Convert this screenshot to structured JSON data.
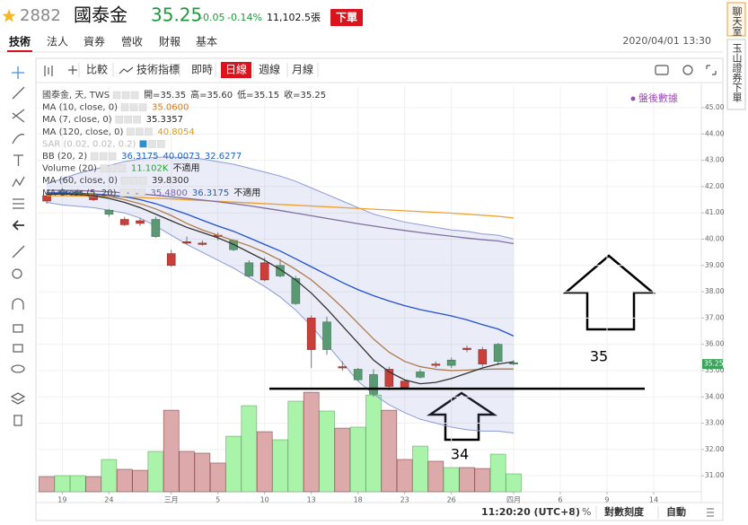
{
  "header": {
    "symbol": "2882",
    "name": "國泰金",
    "price": "35.25",
    "change": "-0.05",
    "change_pct": "-0.14%",
    "volume": "11,102.5張",
    "order_button": "下單"
  },
  "tabs": [
    "技術",
    "法人",
    "資券",
    "營收",
    "財報",
    "基本"
  ],
  "datetime": "2020/04/01 13:30",
  "toolbar": {
    "compare": "比較",
    "indicators": "技術指標",
    "periods": [
      "即時",
      "日線",
      "週線",
      "月線"
    ]
  },
  "side_buttons": [
    "聊天室",
    "玉山證券下單"
  ],
  "chart_data": {
    "type": "candlestick",
    "badge": "盤後數據",
    "legend": [
      {
        "label": "國泰金, 天, TWS",
        "values": [
          "開=35.35",
          "高=35.60",
          "低=35.15",
          "收=35.25"
        ],
        "colors": [
          "#333333",
          "#333333",
          "#333333",
          "#333333"
        ]
      },
      {
        "label": "MA (10, close, 0)",
        "values": [
          "35.0600"
        ],
        "colors": [
          "#d0781e"
        ]
      },
      {
        "label": "MA (7, close, 0)",
        "values": [
          "35.3357"
        ],
        "colors": [
          "#222222"
        ]
      },
      {
        "label": "MA (120, close, 0)",
        "values": [
          "40.8054"
        ],
        "colors": [
          "#e09a1a"
        ]
      },
      {
        "label": "SAR (0.02, 0.02, 0.2)",
        "values": [],
        "colors": []
      },
      {
        "label": "BB (20, 2)",
        "values": [
          "36.3175",
          "40.0073",
          "32.6277"
        ],
        "colors": [
          "#1f5fbf",
          "#1f5fbf",
          "#1f5fbf"
        ]
      },
      {
        "label": "Volume (20)",
        "values": [
          "11.102K",
          "不適用"
        ],
        "colors": [
          "#1fa82a",
          "#222222"
        ]
      },
      {
        "label": "MA (60, close, 0)",
        "values": [
          "39.8300"
        ],
        "colors": [
          "#333333"
        ]
      },
      {
        "label": "MA Cross (5, 20)",
        "values": [
          "35.4800",
          "36.3175",
          "不適用"
        ],
        "colors": [
          "#7a5fbf",
          "#1f5fbf",
          "#222222"
        ]
      }
    ],
    "xlim": [
      -0.58,
      42.06
    ],
    "xticks": [
      {
        "value": 1,
        "label": "19"
      },
      {
        "value": 4,
        "label": "24"
      },
      {
        "value": 8,
        "label": "三月"
      },
      {
        "value": 11,
        "label": "5"
      },
      {
        "value": 14,
        "label": "10"
      },
      {
        "value": 17,
        "label": "13"
      },
      {
        "value": 20,
        "label": "18"
      },
      {
        "value": 23,
        "label": "23"
      },
      {
        "value": 26,
        "label": "26"
      },
      {
        "value": 30,
        "label": "四月"
      },
      {
        "value": 33,
        "label": "6"
      },
      {
        "value": 36,
        "label": "9"
      },
      {
        "value": 39,
        "label": "14"
      }
    ],
    "ylim": [
      30.39,
      45.82
    ],
    "yticks": [
      {
        "value": 31,
        "label": "31.00"
      },
      {
        "value": 32,
        "label": "32.00"
      },
      {
        "value": 33,
        "label": "33.00"
      },
      {
        "value": 34,
        "label": "34.00"
      },
      {
        "value": 35,
        "label": "35.00"
      },
      {
        "value": 36,
        "label": "36.00"
      },
      {
        "value": 37,
        "label": "37.00"
      },
      {
        "value": 38,
        "label": "38.00"
      },
      {
        "value": 39,
        "label": "39.00"
      },
      {
        "value": 40,
        "label": "40.00"
      },
      {
        "value": 41,
        "label": "41.00"
      },
      {
        "value": 42,
        "label": "42.00"
      },
      {
        "value": 43,
        "label": "43.00"
      },
      {
        "value": 44,
        "label": "44.00"
      },
      {
        "value": 45,
        "label": "45.00"
      }
    ],
    "last_label": {
      "value": 35.25,
      "label": "35.25"
    },
    "grid": true,
    "up_color": "#c9403a",
    "down_color": "#5a9a72",
    "ohlc": [
      [
        41.45,
        41.7,
        41.35,
        41.65
      ],
      [
        41.85,
        41.95,
        41.7,
        41.75
      ],
      [
        41.8,
        41.9,
        41.65,
        41.68
      ],
      [
        41.5,
        41.75,
        41.45,
        41.68
      ],
      [
        41.1,
        41.15,
        40.85,
        40.95
      ],
      [
        40.55,
        40.85,
        40.5,
        40.75
      ],
      [
        40.6,
        40.8,
        40.5,
        40.7
      ],
      [
        40.75,
        40.85,
        40.05,
        40.1
      ],
      [
        39.0,
        39.6,
        38.95,
        39.45
      ],
      [
        39.85,
        40.1,
        39.8,
        39.9
      ],
      [
        39.8,
        39.95,
        39.75,
        39.85
      ],
      [
        40.1,
        40.25,
        39.95,
        40.15
      ],
      [
        39.95,
        40.0,
        39.55,
        39.6
      ],
      [
        39.1,
        39.2,
        38.55,
        38.6
      ],
      [
        38.45,
        39.3,
        38.4,
        39.1
      ],
      [
        39.0,
        39.25,
        38.55,
        38.6
      ],
      [
        38.5,
        38.6,
        37.5,
        37.55
      ],
      [
        35.8,
        37.1,
        35.1,
        37.0
      ],
      [
        36.85,
        37.05,
        35.6,
        35.8
      ],
      [
        35.1,
        35.35,
        35.0,
        35.15
      ],
      [
        35.05,
        35.1,
        34.6,
        34.65
      ],
      [
        34.85,
        35.05,
        34.0,
        34.1
      ],
      [
        34.4,
        35.15,
        34.25,
        35.05
      ],
      [
        34.35,
        34.65,
        34.3,
        34.6
      ],
      [
        34.95,
        35.05,
        34.7,
        34.75
      ],
      [
        35.2,
        35.35,
        35.1,
        35.25
      ],
      [
        35.4,
        35.5,
        35.1,
        35.2
      ],
      [
        35.8,
        35.95,
        35.7,
        35.85
      ],
      [
        35.25,
        35.9,
        35.15,
        35.8
      ],
      [
        36.0,
        36.05,
        35.2,
        35.35
      ],
      [
        35.3,
        35.4,
        35.2,
        35.25
      ]
    ],
    "volume": [
      9.4,
      10.0,
      10.0,
      9.4,
      20.0,
      13.9,
      13.3,
      25.0,
      50.5,
      25.0,
      23.9,
      17.8,
      34.4,
      53.3,
      37.2,
      32.2,
      56.1,
      61.6,
      50.0,
      39.4,
      40.0,
      59.9,
      50.5,
      20.0,
      28.3,
      18.9,
      15.0,
      15.0,
      14.4,
      23.3,
      11.102
    ],
    "vlim": [
      0,
      120
    ],
    "volume_up_color": "#dcaaaa",
    "volume_down_color": "#aaf3aa",
    "band": {
      "fill": "rgba(140,150,215,0.18)",
      "color": "#8c9ad6",
      "upper": [
        42.1,
        42.3,
        42.5,
        42.65,
        42.8,
        42.95,
        43.05,
        43.12,
        43.12,
        43.1,
        43.05,
        42.95,
        42.85,
        42.7,
        42.55,
        42.4,
        42.2,
        41.95,
        41.7,
        41.45,
        41.2,
        40.95,
        40.8,
        40.65,
        40.55,
        40.45,
        40.35,
        40.3,
        40.2,
        40.15,
        40.0073
      ],
      "lower": [
        41.4,
        41.3,
        41.25,
        41.2,
        41.1,
        41.0,
        40.8,
        40.5,
        40.15,
        39.8,
        39.5,
        39.2,
        38.9,
        38.55,
        38.2,
        37.8,
        37.3,
        36.7,
        36.0,
        35.3,
        34.6,
        34.1,
        33.7,
        33.4,
        33.15,
        33.0,
        32.85,
        32.75,
        32.7,
        32.7,
        32.6277
      ]
    },
    "lines": [
      {
        "color": "#f0a030",
        "values": [
          41.65,
          41.65,
          41.64,
          41.63,
          41.62,
          41.6,
          41.58,
          41.56,
          41.53,
          41.5,
          41.47,
          41.44,
          41.41,
          41.38,
          41.35,
          41.32,
          41.29,
          41.26,
          41.23,
          41.2,
          41.17,
          41.14,
          41.11,
          41.08,
          41.05,
          41.02,
          40.99,
          40.95,
          40.91,
          40.87,
          40.8054
        ]
      },
      {
        "color": "#8070a0",
        "values": [
          41.86,
          41.86,
          41.85,
          41.83,
          41.8,
          41.76,
          41.72,
          41.67,
          41.61,
          41.55,
          41.49,
          41.42,
          41.35,
          41.27,
          41.18,
          41.09,
          40.99,
          40.89,
          40.79,
          40.69,
          40.59,
          40.5,
          40.41,
          40.33,
          40.25,
          40.18,
          40.11,
          40.04,
          39.98,
          39.93,
          39.83
        ]
      },
      {
        "color": "#2050d0",
        "values": [
          41.76,
          41.76,
          41.75,
          41.72,
          41.68,
          41.62,
          41.5,
          41.35,
          41.15,
          40.95,
          40.72,
          40.5,
          40.3,
          40.05,
          39.8,
          39.55,
          39.25,
          38.95,
          38.65,
          38.35,
          38.08,
          37.85,
          37.65,
          37.47,
          37.32,
          37.2,
          37.08,
          36.93,
          36.75,
          36.58,
          36.3175
        ]
      },
      {
        "color": "#b07a4a",
        "values": [
          41.72,
          41.72,
          41.72,
          41.7,
          41.62,
          41.5,
          41.35,
          41.15,
          40.9,
          40.6,
          40.35,
          40.15,
          39.95,
          39.75,
          39.5,
          39.2,
          38.85,
          38.45,
          37.95,
          37.4,
          36.8,
          36.2,
          35.7,
          35.35,
          35.15,
          35.05,
          35.0,
          35.02,
          35.05,
          35.06,
          35.06
        ]
      },
      {
        "color": "#333333",
        "values": [
          41.7,
          41.72,
          41.7,
          41.65,
          41.55,
          41.4,
          41.2,
          40.95,
          40.7,
          40.45,
          40.25,
          40.05,
          39.8,
          39.5,
          39.2,
          38.85,
          38.45,
          37.95,
          37.35,
          36.7,
          36.05,
          35.4,
          34.95,
          34.65,
          34.5,
          34.55,
          34.7,
          34.9,
          35.1,
          35.25,
          35.3357
        ]
      }
    ],
    "hline": 34.31,
    "annotations": [
      "35",
      "34"
    ]
  },
  "footer": {
    "time": "11:20:20 (UTC+8)",
    "percent": "%",
    "log": "對數刻度",
    "auto": "自動"
  }
}
